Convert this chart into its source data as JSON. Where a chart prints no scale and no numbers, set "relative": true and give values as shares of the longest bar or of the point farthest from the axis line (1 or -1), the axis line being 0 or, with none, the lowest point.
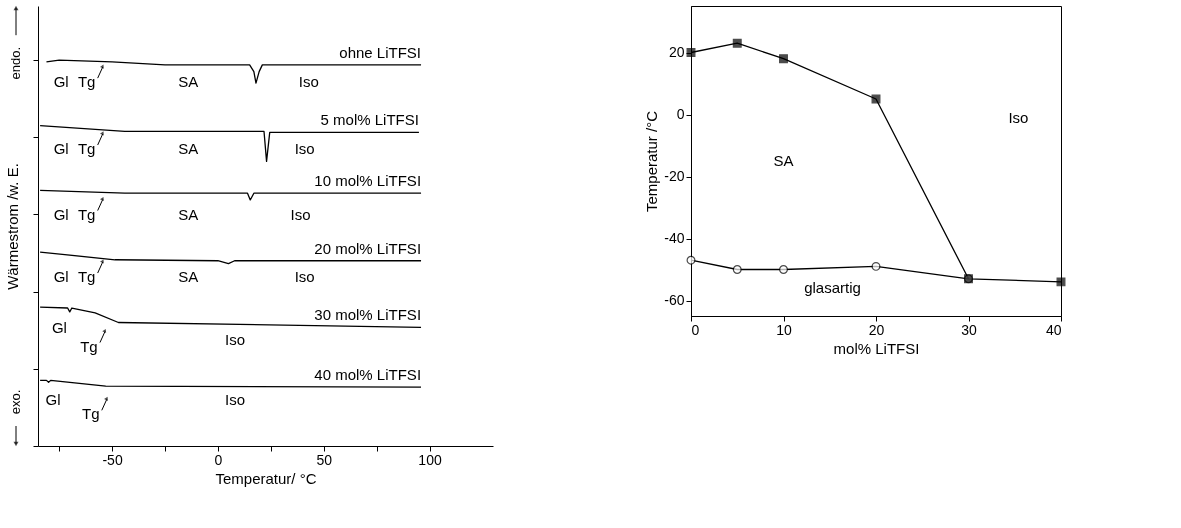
{
  "chart_data": [
    {
      "type": "line",
      "relative": true,
      "xlabel": "Temperatur/ °C",
      "ylabel": "Wärmestrom /w. E.",
      "xlim": [
        -85,
        130
      ],
      "xticks": [
        {
          "value": -75,
          "label": null
        },
        -50,
        {
          "value": -25,
          "label": null
        },
        0,
        {
          "value": 25,
          "label": null
        },
        50,
        {
          "value": 75,
          "label": null
        },
        100
      ],
      "tick_labels": "x",
      "line_style": "solid",
      "marker": "none",
      "series": [
        {
          "name": "ohne LiTFSI",
          "color": "#000000",
          "x": [
            -81,
            -75,
            -50,
            -25,
            15,
            17,
            18,
            19.5,
            21,
            96
          ],
          "values": [
            0.995,
            1,
            0.995,
            0.9875,
            0.9875,
            0.97,
            0.94,
            0.97,
            0.9875,
            0.9875
          ]
        },
        {
          "name": "5 mol% LiTFSI",
          "color": "#000000",
          "x": [
            -84,
            -44,
            21.8,
            23,
            24.5,
            95
          ],
          "values": [
            0.83,
            0.815,
            0.815,
            0.7375,
            0.8125,
            0.8125
          ]
        },
        {
          "name": "10 mol% LiTFSI",
          "color": "#000000",
          "x": [
            -84,
            -44,
            14,
            15.3,
            17,
            96
          ],
          "values": [
            0.6625,
            0.655,
            0.655,
            0.6375,
            0.655,
            0.655
          ]
        },
        {
          "name": "20 mol% LiTFSI",
          "color": "#000000",
          "x": [
            -84,
            -48.6,
            0,
            5,
            7.9,
            96
          ],
          "values": [
            0.5025,
            0.4825,
            0.48,
            0.4725,
            0.48,
            0.48
          ]
        },
        {
          "name": "30 mol% LiTFSI",
          "color": "#000000",
          "x": [
            -84,
            -71,
            -70,
            -69,
            -58,
            -47,
            96
          ],
          "values": [
            0.36,
            0.3575,
            0.3475,
            0.3575,
            0.345,
            0.32,
            0.3075
          ]
        },
        {
          "name": "40 mol% LiTFSI",
          "color": "#000000",
          "x": [
            -84,
            -81,
            -80,
            -79,
            -53,
            96
          ],
          "values": [
            0.17,
            0.17,
            0.165,
            0.17,
            0.155,
            0.1525
          ]
        }
      ],
      "annotations": [
        "endo.",
        "exo.",
        "Gl",
        "Tg",
        "SA",
        "Iso",
        "Gl",
        "Tg",
        "SA",
        "Iso",
        "Gl",
        "Tg",
        "SA",
        "Iso",
        "Gl",
        "Tg",
        "SA",
        "Iso",
        "Gl",
        "Tg",
        "Iso",
        "Gl",
        "Tg",
        "Iso"
      ]
    },
    {
      "type": "line",
      "xlabel": "mol% LiTFSI",
      "ylabel": "Temperatur /°C",
      "xlim": [
        0,
        40
      ],
      "xticks": [
        0,
        10,
        20,
        30,
        40
      ],
      "ylim": [
        -65,
        35
      ],
      "yticks": [
        -60,
        -40,
        -20,
        0,
        20
      ],
      "line_style": "solid",
      "series": [
        {
          "color": "#000000",
          "marker": "circle",
          "x": [
            0,
            5,
            10,
            20,
            30
          ],
          "values": [
            -47,
            -50,
            -50,
            -49,
            -53
          ]
        },
        {
          "color": "#000000",
          "marker": "square",
          "x": [
            0,
            5,
            10,
            20,
            30,
            40
          ],
          "values": [
            20,
            23,
            18,
            5,
            -53,
            -54
          ]
        }
      ],
      "annotations": [
        "SA",
        "Iso",
        "glasartig"
      ]
    }
  ]
}
